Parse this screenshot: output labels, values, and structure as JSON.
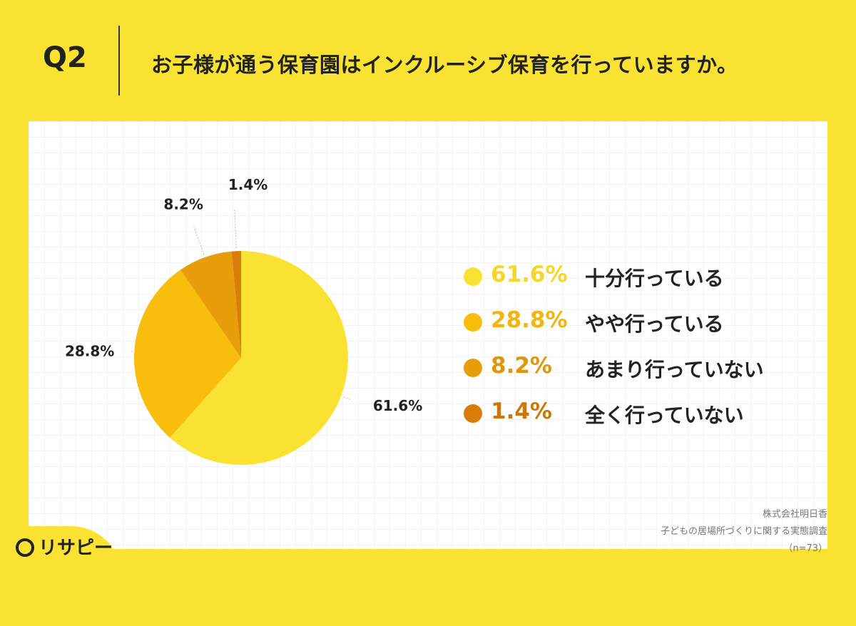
{
  "header": {
    "question_number": "Q2",
    "title": "お子様が通う保育園はインクルーシブ保育を行っていますか。"
  },
  "chart_data": {
    "type": "pie",
    "start_angle_deg": 0,
    "direction": "clockwise",
    "slices": [
      {
        "label": "十分行っている",
        "value": 61.6,
        "display": "61.6%",
        "color": "#f9e231"
      },
      {
        "label": "やや行っている",
        "value": 28.8,
        "display": "28.8%",
        "color": "#f8bd0d"
      },
      {
        "label": "あまり行っていない",
        "value": 8.2,
        "display": "8.2%",
        "color": "#e89e0b"
      },
      {
        "label": "全く行っていない",
        "value": 1.4,
        "display": "1.4%",
        "color": "#d97c09"
      }
    ],
    "legend_position": "right"
  },
  "source": {
    "company": "株式会社明日香",
    "survey": "子どもの居場所づくりに関する実態調査",
    "sample": "（n=73）"
  },
  "logo": {
    "text": "リサピー"
  }
}
